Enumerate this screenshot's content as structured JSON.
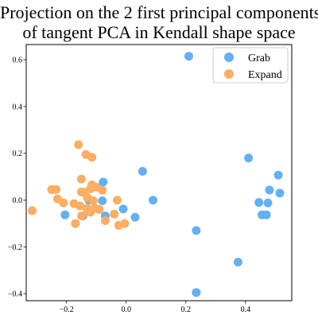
{
  "chart_data": {
    "type": "scatter",
    "title_lines": [
      "Projection on the 2 first principal components",
      "of tangent PCA in Kendall shape space"
    ],
    "xlabel": "",
    "ylabel": "",
    "xlim": [
      -0.335,
      0.555
    ],
    "ylim": [
      -0.43,
      0.665
    ],
    "xticks": [
      -0.2,
      0.0,
      0.2,
      0.4
    ],
    "xtick_labels": [
      "−0.2",
      "0.0",
      "0.2",
      "0.4"
    ],
    "yticks": [
      -0.4,
      -0.2,
      0.0,
      0.2,
      0.4,
      0.6
    ],
    "ytick_labels": [
      "−0.4",
      "−0.2",
      "0.0",
      "0.2",
      "0.4",
      "0.6"
    ],
    "grid": false,
    "legend_position": "top-right",
    "series": [
      {
        "name": "Grab",
        "color": "#64b0f3",
        "points": [
          [
            0.21,
            0.615
          ],
          [
            0.41,
            0.18
          ],
          [
            0.51,
            0.107
          ],
          [
            0.055,
            0.123
          ],
          [
            -0.077,
            0.077
          ],
          [
            0.48,
            0.043
          ],
          [
            0.515,
            0.03
          ],
          [
            0.09,
            0.0
          ],
          [
            -0.125,
            0.0
          ],
          [
            -0.08,
            -0.003
          ],
          [
            0.445,
            -0.01
          ],
          [
            0.475,
            -0.012
          ],
          [
            -0.01,
            -0.038
          ],
          [
            -0.205,
            -0.063
          ],
          [
            -0.145,
            -0.068
          ],
          [
            -0.07,
            -0.068
          ],
          [
            0.03,
            -0.073
          ],
          [
            0.455,
            -0.063
          ],
          [
            0.47,
            -0.063
          ],
          [
            -0.17,
            -0.1
          ],
          [
            0.235,
            -0.13
          ],
          [
            0.375,
            -0.265
          ],
          [
            0.235,
            -0.395
          ]
        ]
      },
      {
        "name": "Expand",
        "color": "#fbae64",
        "points": [
          [
            -0.16,
            0.237
          ],
          [
            -0.135,
            0.195
          ],
          [
            -0.115,
            0.183
          ],
          [
            -0.15,
            0.09
          ],
          [
            -0.115,
            0.065
          ],
          [
            -0.25,
            0.045
          ],
          [
            -0.235,
            0.045
          ],
          [
            -0.12,
            0.048
          ],
          [
            -0.1,
            0.055
          ],
          [
            -0.15,
            0.035
          ],
          [
            -0.14,
            0.033
          ],
          [
            -0.08,
            0.042
          ],
          [
            -0.13,
            0.01
          ],
          [
            -0.23,
            0.005
          ],
          [
            -0.03,
            0.0
          ],
          [
            -0.11,
            -0.003
          ],
          [
            -0.21,
            -0.012
          ],
          [
            -0.175,
            -0.015
          ],
          [
            -0.155,
            -0.025
          ],
          [
            -0.13,
            -0.035
          ],
          [
            -0.105,
            -0.035
          ],
          [
            -0.09,
            -0.04
          ],
          [
            -0.13,
            -0.048
          ],
          [
            -0.12,
            -0.052
          ],
          [
            -0.315,
            -0.045
          ],
          [
            -0.04,
            -0.06
          ],
          [
            -0.15,
            -0.068
          ],
          [
            -0.07,
            -0.088
          ],
          [
            -0.005,
            -0.1
          ],
          [
            -0.025,
            -0.108
          ],
          [
            -0.17,
            -0.1
          ]
        ]
      }
    ]
  }
}
